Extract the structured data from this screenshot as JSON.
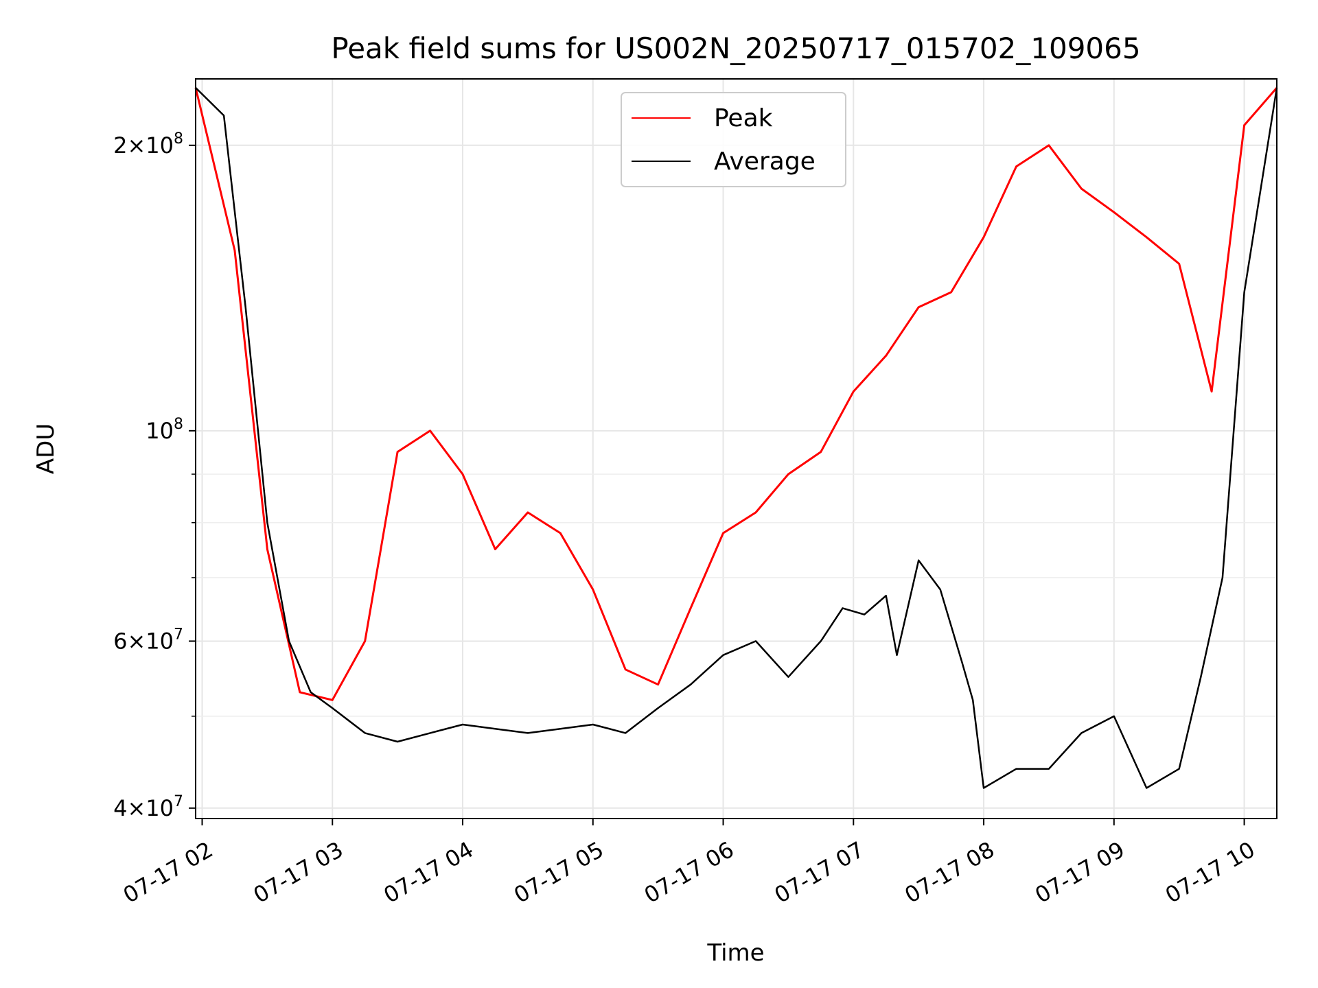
{
  "chart_data": {
    "type": "line",
    "title": "Peak field sums for US002N_20250717_015702_109065",
    "xlabel": "Time",
    "ylabel": "ADU",
    "x_axis": "datetime",
    "xlim": [
      "2025-07-17 01:57",
      "2025-07-17 10:15"
    ],
    "ylim": [
      39000000,
      235000000
    ],
    "y_scale": "log",
    "grid": true,
    "legend": "top-center",
    "x_ticks": [
      "07-17 02",
      "07-17 03",
      "07-17 04",
      "07-17 05",
      "07-17 06",
      "07-17 07",
      "07-17 08",
      "07-17 09",
      "07-17 10"
    ],
    "y_ticks": [
      {
        "value": 40000000,
        "label": "4 × 10^7",
        "mant": "4",
        "exp": "7"
      },
      {
        "value": 60000000,
        "label": "6 × 10^7",
        "mant": "6",
        "exp": "7"
      },
      {
        "value": 100000000,
        "label": "10^8",
        "mant": "",
        "exp": "8"
      },
      {
        "value": 200000000,
        "label": "2 × 10^8",
        "mant": "2",
        "exp": "8"
      }
    ],
    "series": [
      {
        "name": "Peak",
        "color": "#ff0000",
        "x": [
          "2025-07-17 01:57",
          "2025-07-17 02:15",
          "2025-07-17 02:30",
          "2025-07-17 02:45",
          "2025-07-17 03:00",
          "2025-07-17 03:15",
          "2025-07-17 03:30",
          "2025-07-17 03:45",
          "2025-07-17 04:00",
          "2025-07-17 04:15",
          "2025-07-17 04:30",
          "2025-07-17 04:45",
          "2025-07-17 05:00",
          "2025-07-17 05:15",
          "2025-07-17 05:30",
          "2025-07-17 05:45",
          "2025-07-17 06:00",
          "2025-07-17 06:15",
          "2025-07-17 06:30",
          "2025-07-17 06:45",
          "2025-07-17 07:00",
          "2025-07-17 07:15",
          "2025-07-17 07:30",
          "2025-07-17 07:45",
          "2025-07-17 08:00",
          "2025-07-17 08:15",
          "2025-07-17 08:30",
          "2025-07-17 08:45",
          "2025-07-17 09:00",
          "2025-07-17 09:15",
          "2025-07-17 09:30",
          "2025-07-17 09:45",
          "2025-07-17 10:00",
          "2025-07-17 10:15"
        ],
        "y": [
          230000000,
          155000000,
          75000000,
          53000000,
          52000000,
          60000000,
          95000000,
          100000000,
          90000000,
          75000000,
          82000000,
          78000000,
          68000000,
          56000000,
          54000000,
          65000000,
          78000000,
          82000000,
          90000000,
          95000000,
          110000000,
          120000000,
          135000000,
          140000000,
          160000000,
          190000000,
          200000000,
          180000000,
          170000000,
          160000000,
          150000000,
          110000000,
          210000000,
          230000000
        ]
      },
      {
        "name": "Average",
        "color": "#000000",
        "x": [
          "2025-07-17 01:57",
          "2025-07-17 02:10",
          "2025-07-17 02:20",
          "2025-07-17 02:30",
          "2025-07-17 02:40",
          "2025-07-17 02:50",
          "2025-07-17 03:00",
          "2025-07-17 03:15",
          "2025-07-17 03:30",
          "2025-07-17 03:45",
          "2025-07-17 04:00",
          "2025-07-17 04:15",
          "2025-07-17 04:30",
          "2025-07-17 04:45",
          "2025-07-17 05:00",
          "2025-07-17 05:15",
          "2025-07-17 05:30",
          "2025-07-17 05:45",
          "2025-07-17 06:00",
          "2025-07-17 06:15",
          "2025-07-17 06:30",
          "2025-07-17 06:45",
          "2025-07-17 06:55",
          "2025-07-17 07:05",
          "2025-07-17 07:15",
          "2025-07-17 07:20",
          "2025-07-17 07:30",
          "2025-07-17 07:40",
          "2025-07-17 07:50",
          "2025-07-17 07:55",
          "2025-07-17 08:00",
          "2025-07-17 08:15",
          "2025-07-17 08:30",
          "2025-07-17 08:45",
          "2025-07-17 09:00",
          "2025-07-17 09:15",
          "2025-07-17 09:30",
          "2025-07-17 09:40",
          "2025-07-17 09:50",
          "2025-07-17 10:00",
          "2025-07-17 10:15"
        ],
        "y": [
          230000000,
          215000000,
          135000000,
          80000000,
          60000000,
          53000000,
          51000000,
          48000000,
          47000000,
          48000000,
          49000000,
          48500000,
          48000000,
          48500000,
          49000000,
          48000000,
          51000000,
          54000000,
          58000000,
          60000000,
          55000000,
          60000000,
          65000000,
          64000000,
          67000000,
          58000000,
          73000000,
          68000000,
          57000000,
          52000000,
          42000000,
          44000000,
          44000000,
          48000000,
          50000000,
          42000000,
          44000000,
          55000000,
          70000000,
          140000000,
          230000000
        ]
      }
    ]
  }
}
